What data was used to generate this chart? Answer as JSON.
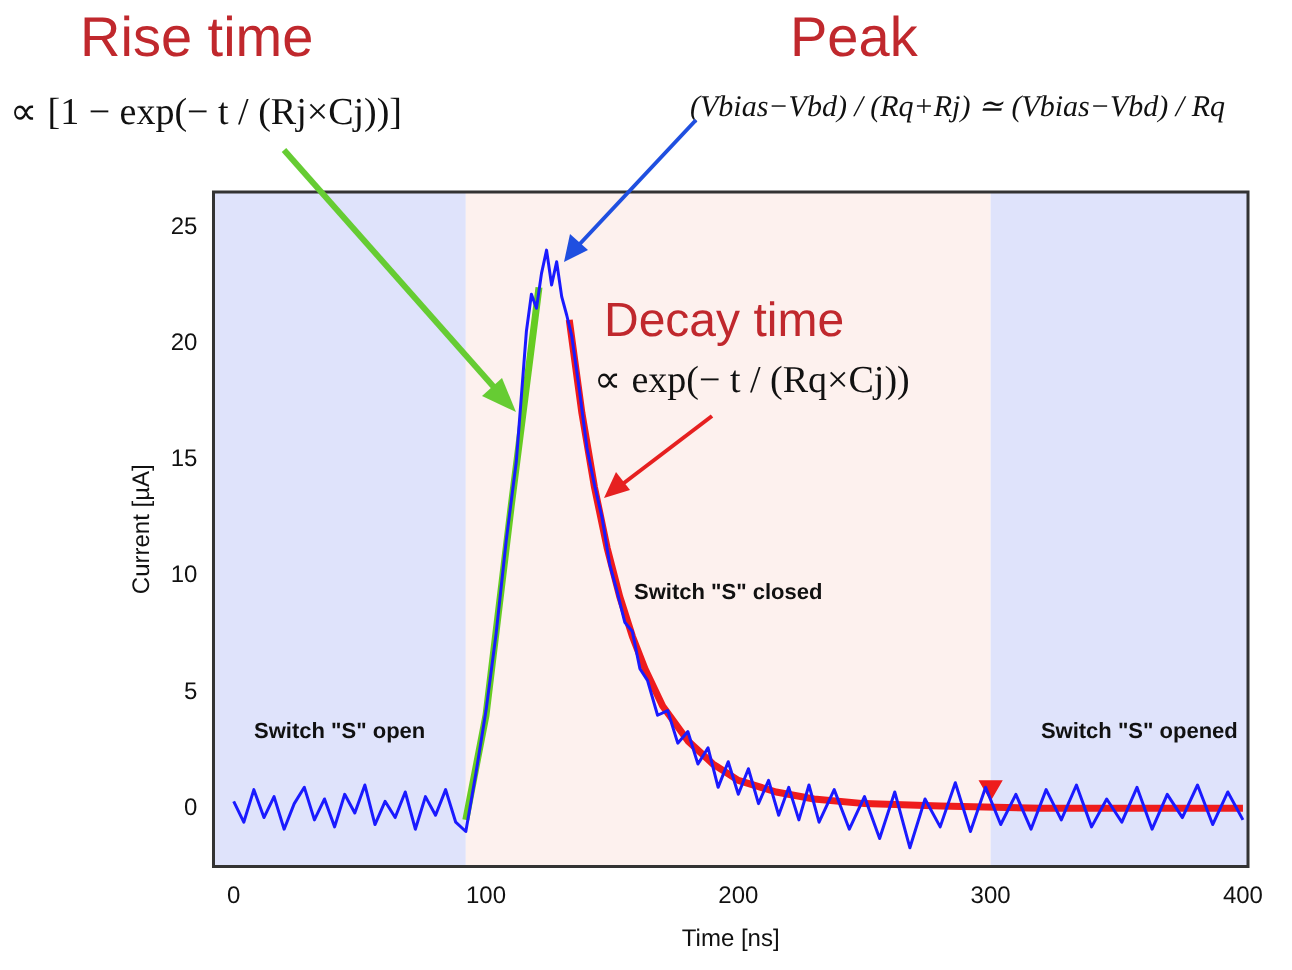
{
  "chart_data": {
    "type": "line",
    "xlabel": "Time [ns]",
    "ylabel": "Current [µA]",
    "xlim": [
      -8,
      402
    ],
    "ylim": [
      -2.5,
      26.5
    ],
    "xticks": [
      0,
      100,
      200,
      300,
      400
    ],
    "yticks": [
      0,
      5,
      10,
      15,
      20,
      25
    ],
    "grid": false,
    "legend": false,
    "marker": "none",
    "line_style": "solid",
    "bands": [
      {
        "axis": "x",
        "from": -8,
        "to": 92,
        "label": "Switch \"S\" open",
        "color": "#dfe3fb"
      },
      {
        "axis": "x",
        "from": 92,
        "to": 300,
        "label": "Switch \"S\" closed",
        "color": "#fdf1ee"
      },
      {
        "axis": "x",
        "from": 300,
        "to": 402,
        "label": "Switch \"S\" opened",
        "color": "#dfe3fb"
      }
    ],
    "annotations": [
      "Rise time",
      "∝ [1 − exp(− t / (Rj×Cj))]",
      "Peak",
      "(Vbias−Vbd) / (Rq+Rj) ≃ (Vbias−Vbd) / Rq",
      "Decay time",
      "∝ exp(− t / (Rq×Cj))"
    ],
    "series": [
      {
        "color": "#1a1aff",
        "x": [
          0,
          4,
          8,
          12,
          16,
          20,
          24,
          28,
          32,
          36,
          40,
          44,
          48,
          52,
          56,
          60,
          64,
          68,
          72,
          76,
          80,
          84,
          88,
          92,
          96,
          100,
          104,
          108,
          112,
          116,
          118,
          120,
          122,
          124,
          126,
          128,
          130,
          132,
          134,
          137,
          140,
          143,
          146,
          149,
          152,
          155,
          158,
          161,
          164,
          168,
          172,
          176,
          180,
          184,
          188,
          192,
          196,
          200,
          204,
          208,
          212,
          216,
          220,
          224,
          228,
          232,
          238,
          244,
          250,
          256,
          262,
          268,
          274,
          280,
          286,
          292,
          298,
          304,
          310,
          316,
          322,
          328,
          334,
          340,
          346,
          352,
          358,
          364,
          370,
          376,
          382,
          388,
          394,
          400
        ],
        "values": [
          0.3,
          -0.6,
          0.8,
          -0.4,
          0.5,
          -0.9,
          0.2,
          0.9,
          -0.5,
          0.4,
          -0.8,
          0.6,
          -0.2,
          1.0,
          -0.7,
          0.3,
          -0.4,
          0.7,
          -0.9,
          0.5,
          -0.3,
          0.8,
          -0.6,
          -1.0,
          1.5,
          4.2,
          7.5,
          11.5,
          14.9,
          20.5,
          22.1,
          21.5,
          23.0,
          24.0,
          22.5,
          23.5,
          22.0,
          21.2,
          20.3,
          18.0,
          15.5,
          13.9,
          12.5,
          10.5,
          9.3,
          8.0,
          7.6,
          6.0,
          5.5,
          4.0,
          4.2,
          2.8,
          3.3,
          1.9,
          2.6,
          0.9,
          2.0,
          0.6,
          1.7,
          0.2,
          1.2,
          -0.3,
          0.9,
          -0.5,
          1.0,
          -0.6,
          0.8,
          -0.9,
          0.5,
          -1.3,
          0.7,
          -1.7,
          0.4,
          -0.8,
          1.1,
          -1.0,
          0.9,
          -0.7,
          0.6,
          -0.9,
          0.8,
          -0.5,
          1.0,
          -0.8,
          0.4,
          -0.6,
          0.9,
          -0.9,
          0.6,
          -0.4,
          1.0,
          -0.7,
          0.7,
          -0.5
        ]
      },
      {
        "color": "#66cc22",
        "x": [
          92,
          100,
          110,
          121
        ],
        "values": [
          -0.5,
          4,
          13,
          22.4
        ]
      },
      {
        "color": "#ee1c1c",
        "x": [
          133,
          138,
          143,
          148,
          153,
          158,
          163,
          170,
          180,
          190,
          200,
          215,
          230,
          250,
          280,
          320,
          360,
          400
        ],
        "values": [
          21,
          17,
          13.8,
          11.2,
          9.1,
          7.4,
          6,
          4.4,
          2.9,
          1.9,
          1.2,
          0.7,
          0.4,
          0.2,
          0.1,
          0,
          0,
          0
        ]
      },
      {
        "type": "scatter",
        "marker": "triangle",
        "color": "#ee1c1c",
        "x": [
          300
        ],
        "values": [
          0.9
        ]
      }
    ]
  }
}
